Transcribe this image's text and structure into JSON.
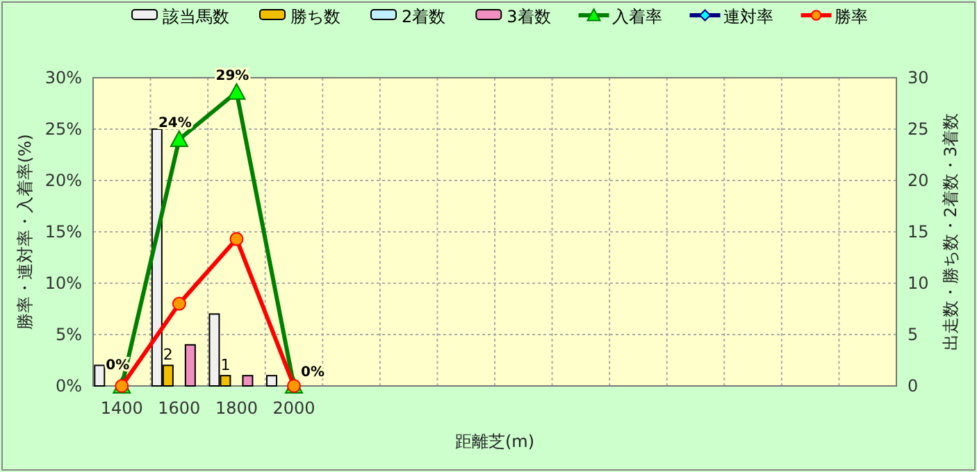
{
  "chart_data": {
    "type": "bar",
    "xlabel": "距離芝(m)",
    "ylabel": "勝率・連対率・入着率(%)",
    "y2label": "出走数・勝ち数・2着数・3着数",
    "categories": [
      "1400",
      "1600",
      "1800",
      "2000",
      null,
      null,
      null,
      null,
      null,
      null,
      null,
      null,
      null,
      null
    ],
    "ylim": [
      0,
      30
    ],
    "yticks": [
      {
        "value": 0,
        "label": "0%"
      },
      {
        "value": 5,
        "label": "5%"
      },
      {
        "value": 10,
        "label": "10%"
      },
      {
        "value": 15,
        "label": "15%"
      },
      {
        "value": 20,
        "label": "20%"
      },
      {
        "value": 25,
        "label": "25%"
      },
      {
        "value": 30,
        "label": "30%"
      }
    ],
    "y2lim": [
      0,
      30
    ],
    "y2ticks": [
      0,
      5,
      10,
      15,
      20,
      25,
      30
    ],
    "grid": true,
    "legend": "top",
    "series": [
      {
        "name": "該当馬数",
        "axis": "y2",
        "color": "#f0f0f0",
        "values": [
          2,
          25,
          7,
          1,
          null,
          null,
          null,
          null,
          null,
          null,
          null,
          null,
          null,
          null
        ]
      },
      {
        "name": "勝ち数",
        "axis": "y2",
        "color": "#f0c000",
        "values": [
          0,
          2,
          1,
          0,
          null,
          null,
          null,
          null,
          null,
          null,
          null,
          null,
          null,
          null
        ],
        "value_labels": [
          null,
          "2",
          "1",
          null,
          null,
          null,
          null,
          null,
          null,
          null,
          null,
          null,
          null,
          null
        ]
      },
      {
        "name": "2着数",
        "axis": "y2",
        "color": "#c0f0ff",
        "values": [
          0,
          0,
          0,
          0,
          null,
          null,
          null,
          null,
          null,
          null,
          null,
          null,
          null,
          null
        ]
      },
      {
        "name": "3着数",
        "axis": "y2",
        "color": "#f090c0",
        "values": [
          0,
          4,
          1,
          0,
          null,
          null,
          null,
          null,
          null,
          null,
          null,
          null,
          null,
          null
        ]
      },
      {
        "name": "入着率",
        "type": "line",
        "marker": "triangle",
        "color": "#008000",
        "values": [
          0,
          24,
          28.6,
          0,
          null,
          null,
          null,
          null,
          null,
          null,
          null,
          null,
          null,
          null
        ],
        "value_labels": [
          "0%",
          "24%",
          "29%",
          "0%",
          null,
          null,
          null,
          null,
          null,
          null,
          null,
          null,
          null,
          null
        ]
      },
      {
        "name": "連対率",
        "type": "line",
        "marker": "diamond",
        "color": "#000080",
        "values": [
          null,
          null,
          null,
          null,
          null,
          null,
          null,
          null,
          null,
          null,
          null,
          null,
          null,
          null
        ]
      },
      {
        "name": "勝率",
        "type": "line",
        "marker": "circle",
        "color": "#ff0000",
        "values": [
          0,
          8,
          14.3,
          0,
          null,
          null,
          null,
          null,
          null,
          null,
          null,
          null,
          null,
          null
        ]
      }
    ]
  }
}
